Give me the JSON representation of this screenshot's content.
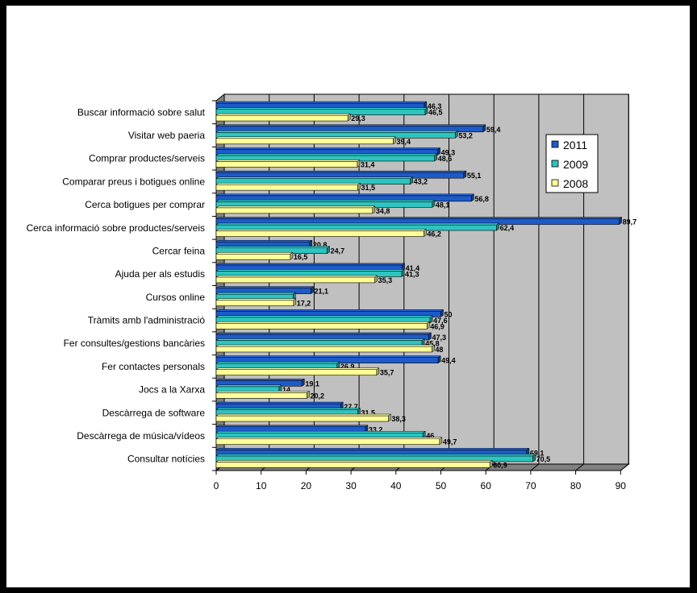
{
  "chart_data": {
    "type": "bar",
    "orientation": "horizontal",
    "categories": [
      "Buscar informació sobre salut",
      "Visitar web paeria",
      "Comprar productes/serveis",
      "Comparar preus i botigues online",
      "Cerca botigues per comprar",
      "Cerca informació sobre productes/serveis",
      "Cercar feina",
      "Ajuda per als estudis",
      "Cursos online",
      "Tràmits amb l'administració",
      "Fer consultes/gestions bancàries",
      "Fer contactes personals",
      "Jocs a la Xarxa",
      "Descàrrega de software",
      "Descàrrega de música/vídeos",
      "Consultar notícies"
    ],
    "series": [
      {
        "name": "2011",
        "color": "#1e5bc8",
        "values": [
          46.3,
          59.4,
          49.3,
          55.1,
          56.8,
          89.7,
          20.8,
          41.4,
          21.1,
          50,
          47.3,
          49.4,
          19.1,
          27.7,
          33.2,
          69.1
        ],
        "labels": [
          "46,3",
          "59,4",
          "49,3",
          "55,1",
          "56,8",
          "89,7",
          "20,8",
          "41,4",
          "21,1",
          "50",
          "47,3",
          "49,4",
          "19,1",
          "27,7",
          "33,2",
          "69,1"
        ]
      },
      {
        "name": "2009",
        "color": "#2ec4c0",
        "values": [
          46.5,
          53.2,
          48.6,
          43.2,
          48.1,
          62.4,
          24.7,
          41.3,
          17.1,
          47.6,
          45.8,
          26.9,
          14,
          31.5,
          46,
          70.5
        ],
        "labels": [
          "46,5",
          "53,2",
          "48,6",
          "43,2",
          "48,1",
          "62,4",
          "24,7",
          "41,3",
          "",
          "47,6",
          "45,8",
          "26,9",
          "14",
          "31,5",
          "46",
          "70,5"
        ]
      },
      {
        "name": "2008",
        "color": "#ffff99",
        "values": [
          29.3,
          39.4,
          31.4,
          31.5,
          34.8,
          46.2,
          16.5,
          35.3,
          17.2,
          46.9,
          48,
          35.7,
          20.2,
          38.3,
          49.7,
          60.9
        ],
        "labels": [
          "29,3",
          "39,4",
          "31,4",
          "31,5",
          "34,8",
          "46,2",
          "16,5",
          "35,3",
          "17,2",
          "46,9",
          "48",
          "35,7",
          "20,2",
          "38,3",
          "49,7",
          "60,9"
        ]
      }
    ],
    "xlim": [
      0,
      90
    ],
    "xticks": [
      "0",
      "10",
      "20",
      "30",
      "40",
      "50",
      "60",
      "70",
      "80",
      "90"
    ],
    "grid": true,
    "legend_position": "right",
    "plot_background": "#c0c0c0"
  }
}
